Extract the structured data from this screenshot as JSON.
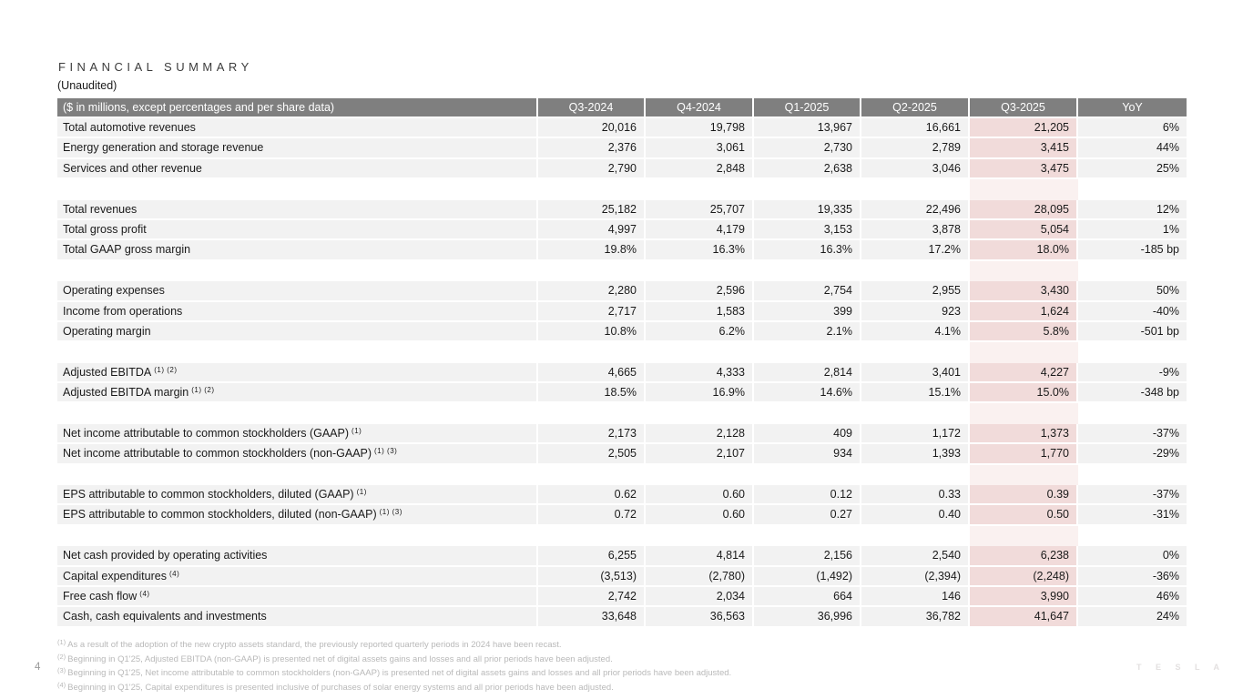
{
  "page": {
    "title": "FINANCIAL SUMMARY",
    "subtitle": "(Unaudited)",
    "page_number": "4",
    "brand": "T E S L A"
  },
  "colors": {
    "header_bg": "#7f7f7f",
    "header_text": "#ffffff",
    "row_bg": "#f2f2f2",
    "highlight_column_bg": "#f1dbda",
    "highlight_spacer_bg": "#faf1f0",
    "body_text": "#1a1a1a",
    "footnote_text": "#b9b9b9"
  },
  "table": {
    "header": {
      "label": "($ in millions, except percentages and per share data)",
      "columns": [
        "Q3-2024",
        "Q4-2024",
        "Q1-2025",
        "Q2-2025",
        "Q3-2025",
        "YoY"
      ],
      "highlighted_column": "Q3-2025"
    },
    "sections": [
      {
        "rows": [
          {
            "label": "Total automotive revenues",
            "sup": "",
            "values": [
              "20,016",
              "19,798",
              "13,967",
              "16,661",
              "21,205",
              "6%"
            ]
          },
          {
            "label": "Energy generation and storage revenue",
            "sup": "",
            "values": [
              "2,376",
              "3,061",
              "2,730",
              "2,789",
              "3,415",
              "44%"
            ]
          },
          {
            "label": "Services and other revenue",
            "sup": "",
            "values": [
              "2,790",
              "2,848",
              "2,638",
              "3,046",
              "3,475",
              "25%"
            ]
          }
        ]
      },
      {
        "rows": [
          {
            "label": "Total revenues",
            "sup": "",
            "values": [
              "25,182",
              "25,707",
              "19,335",
              "22,496",
              "28,095",
              "12%"
            ]
          },
          {
            "label": "Total gross profit",
            "sup": "",
            "values": [
              "4,997",
              "4,179",
              "3,153",
              "3,878",
              "5,054",
              "1%"
            ]
          },
          {
            "label": "Total GAAP gross margin",
            "sup": "",
            "values": [
              "19.8%",
              "16.3%",
              "16.3%",
              "17.2%",
              "18.0%",
              "-185 bp"
            ]
          }
        ]
      },
      {
        "rows": [
          {
            "label": "Operating expenses",
            "sup": "",
            "values": [
              "2,280",
              "2,596",
              "2,754",
              "2,955",
              "3,430",
              "50%"
            ]
          },
          {
            "label": "Income from operations",
            "sup": "",
            "values": [
              "2,717",
              "1,583",
              "399",
              "923",
              "1,624",
              "-40%"
            ]
          },
          {
            "label": "Operating margin",
            "sup": "",
            "values": [
              "10.8%",
              "6.2%",
              "2.1%",
              "4.1%",
              "5.8%",
              "-501 bp"
            ]
          }
        ]
      },
      {
        "rows": [
          {
            "label": "Adjusted EBITDA",
            "sup": "(1) (2)",
            "values": [
              "4,665",
              "4,333",
              "2,814",
              "3,401",
              "4,227",
              "-9%"
            ]
          },
          {
            "label": "Adjusted EBITDA margin",
            "sup": "(1) (2)",
            "values": [
              "18.5%",
              "16.9%",
              "14.6%",
              "15.1%",
              "15.0%",
              "-348 bp"
            ]
          }
        ]
      },
      {
        "rows": [
          {
            "label": "Net income attributable to common stockholders (GAAP)",
            "sup": "(1)",
            "values": [
              "2,173",
              "2,128",
              "409",
              "1,172",
              "1,373",
              "-37%"
            ]
          },
          {
            "label": "Net income attributable to common stockholders (non-GAAP)",
            "sup": "(1) (3)",
            "values": [
              "2,505",
              "2,107",
              "934",
              "1,393",
              "1,770",
              "-29%"
            ]
          }
        ]
      },
      {
        "rows": [
          {
            "label": "EPS attributable to common stockholders, diluted (GAAP)",
            "sup": "(1)",
            "values": [
              "0.62",
              "0.60",
              "0.12",
              "0.33",
              "0.39",
              "-37%"
            ]
          },
          {
            "label": "EPS attributable to common stockholders, diluted (non-GAAP)",
            "sup": "(1) (3)",
            "values": [
              "0.72",
              "0.60",
              "0.27",
              "0.40",
              "0.50",
              "-31%"
            ]
          }
        ]
      },
      {
        "rows": [
          {
            "label": "Net cash provided by operating activities",
            "sup": "",
            "values": [
              "6,255",
              "4,814",
              "2,156",
              "2,540",
              "6,238",
              "0%"
            ]
          },
          {
            "label": "Capital expenditures",
            "sup": "(4)",
            "values": [
              "(3,513)",
              "(2,780)",
              "(1,492)",
              "(2,394)",
              "(2,248)",
              "-36%"
            ]
          },
          {
            "label": "Free cash flow",
            "sup": "(4)",
            "values": [
              "2,742",
              "2,034",
              "664",
              "146",
              "3,990",
              "46%"
            ]
          },
          {
            "label": "Cash, cash equivalents and investments",
            "sup": "",
            "values": [
              "33,648",
              "36,563",
              "36,996",
              "36,782",
              "41,647",
              "24%"
            ]
          }
        ]
      }
    ]
  },
  "footnotes": [
    {
      "marker": "(1)",
      "text": "As a result of the adoption of the new crypto assets standard, the previously reported quarterly periods in 2024 have been recast."
    },
    {
      "marker": "(2)",
      "text": "Beginning in Q1'25, Adjusted EBITDA (non-GAAP) is presented net of digital assets gains and losses and all prior periods have been adjusted."
    },
    {
      "marker": "(3)",
      "text": "Beginning in Q1'25, Net income attributable to common stockholders (non-GAAP) is presented net of digital assets gains and losses and all prior periods have been adjusted."
    },
    {
      "marker": "(4)",
      "text": "Beginning in Q1'25, Capital expenditures is presented inclusive of purchases of solar energy systems and all prior periods have been adjusted."
    }
  ]
}
